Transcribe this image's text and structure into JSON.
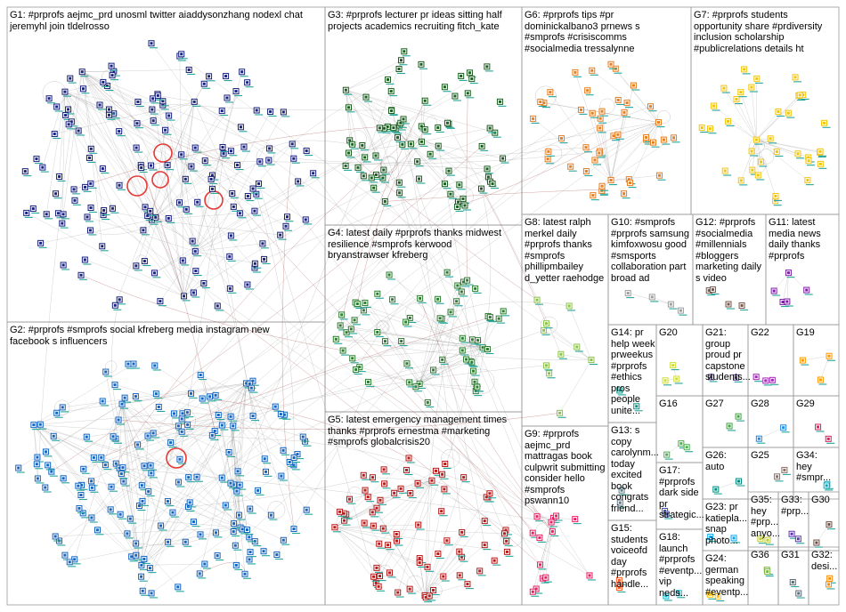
{
  "groups": [
    {
      "id": "G1",
      "label": "G1: #prprofs aejmc_prd unosml twitter aiaddysonzhang nodexl chat\njeremyhl join tldelrosso",
      "color": "#1a237e"
    },
    {
      "id": "G2",
      "label": "G2: #prprofs #smprofs social kfreberg media instagram new\nfacebook s influencers",
      "color": "#1565c0"
    },
    {
      "id": "G3",
      "label": "G3: #prprofs lecturer pr ideas sitting half\nprojects academics recruiting fitch_kate",
      "color": "#1b5e20"
    },
    {
      "id": "G4",
      "label": "G4: latest daily #prprofs thanks midwest\nresilience #smprofs kerwood\nbryanstrawser kfreberg",
      "color": "#2e7d32"
    },
    {
      "id": "G5",
      "label": "G5: latest emergency management times\nthanks #prprofs ernestma #marketing\n#smprofs globalcrisis20",
      "color": "#b71c1c"
    },
    {
      "id": "G6",
      "label": "G6: #prprofs tips #pr\ndominickalbano3 prnews s\n#smprofs #crisiscomms\n#socialmedia tressalynne",
      "color": "#e67e22"
    },
    {
      "id": "G7",
      "label": "G7: #prprofs students\nopportunity share #prdiversity\ninclusion scholarship\n#publicrelations details ht",
      "color": "#f1c40f"
    },
    {
      "id": "G8",
      "label": "G8: latest ralph\nmerkel daily\n#prprofs thanks\n#smprofs\nphillipmbailey\nd_yetter raehodge",
      "color": "#8bc34a"
    },
    {
      "id": "G9",
      "label": "G9: #prprofs\naejmc_prd\nmattragas book\nculpwrit submitting\nconsider hello\n#smprofs\npswann10",
      "color": "#e91e63"
    },
    {
      "id": "G10",
      "label": "G10: #smprofs\n#prprofs samsung\nkimfoxwosu good\n#smsports\ncollaboration part\nbroad ad",
      "color": "#9e9e9e"
    },
    {
      "id": "G11",
      "label": "G11: latest\nmedia news\ndaily thanks\n#prprofs",
      "color": "#7b1fa2"
    },
    {
      "id": "G12",
      "label": "G12: #prprofs\n#socialmedia\n#millennials\n#bloggers\nmarketing daily\ns video",
      "color": "#795548"
    },
    {
      "id": "G13",
      "label": "G13: s\ncopy\ncarolynm...\ntoday\nexcited\nbook\ncongrats\nfriend...",
      "color": "#607d8b"
    },
    {
      "id": "G14",
      "label": "G14: pr\nhelp week\nprweekus\n#prprofs\n#ethics\npros\npeople\nunite...",
      "color": "#009688"
    },
    {
      "id": "G15",
      "label": "G15:\nstudents\nvoiceofd\nday\n#prprofs\nhandle...",
      "color": "#ff5722"
    },
    {
      "id": "G16",
      "label": "G16",
      "color": "#4caf50"
    },
    {
      "id": "G17",
      "label": "G17:\n#prprofs\ndark side\npr\nstrategic...",
      "color": "#3f51b5"
    },
    {
      "id": "G18",
      "label": "G18:\nlaunch\n#prprofs\n#eventp...\nvip neds...",
      "color": "#00bcd4"
    },
    {
      "id": "G19",
      "label": "G19",
      "color": "#ff9800"
    },
    {
      "id": "G20",
      "label": "G20",
      "color": "#cddc39"
    },
    {
      "id": "G21",
      "label": "G21:\ngroup\nproud pr\ncapstone\nstudents...",
      "color": "#673ab7"
    },
    {
      "id": "G22",
      "label": "G22",
      "color": "#9c27b0"
    },
    {
      "id": "G23",
      "label": "G23: pr\nkatiepla...\nsnap\nphoto...",
      "color": "#03a9f4"
    },
    {
      "id": "G24",
      "label": "G24:\ngerman\nspeaking\n#eventp...",
      "color": "#ffc107"
    },
    {
      "id": "G25",
      "label": "G25",
      "color": "#8d6e63"
    },
    {
      "id": "G26",
      "label": "G26: auto",
      "color": "#00897b"
    },
    {
      "id": "G27",
      "label": "G27",
      "color": "#43a047"
    },
    {
      "id": "G28",
      "label": "G28",
      "color": "#1e88e5"
    },
    {
      "id": "G29",
      "label": "G29",
      "color": "#d81b60"
    },
    {
      "id": "G30",
      "label": "G30",
      "color": "#6d4c41"
    },
    {
      "id": "G31",
      "label": "G31",
      "color": "#546e7a"
    },
    {
      "id": "G32",
      "label": "G32:\ndesi...",
      "color": "#fb8c00"
    },
    {
      "id": "G33",
      "label": "G33:\n#prp...",
      "color": "#5e35b1"
    },
    {
      "id": "G34",
      "label": "G34:\nhey\n#smpr...",
      "color": "#00acc1"
    },
    {
      "id": "G35",
      "label": "G35:\nhey\n#prp...\nanyo...",
      "color": "#c0ca33"
    },
    {
      "id": "G36",
      "label": "G36",
      "color": "#7cb342"
    }
  ],
  "colors": {
    "box_border": "#9a9a9a",
    "edge": "#8f8f8f",
    "edge_hub": "#8b1a1a",
    "highlight_ring": "#e53935",
    "node_shadow": "#26a69a"
  }
}
